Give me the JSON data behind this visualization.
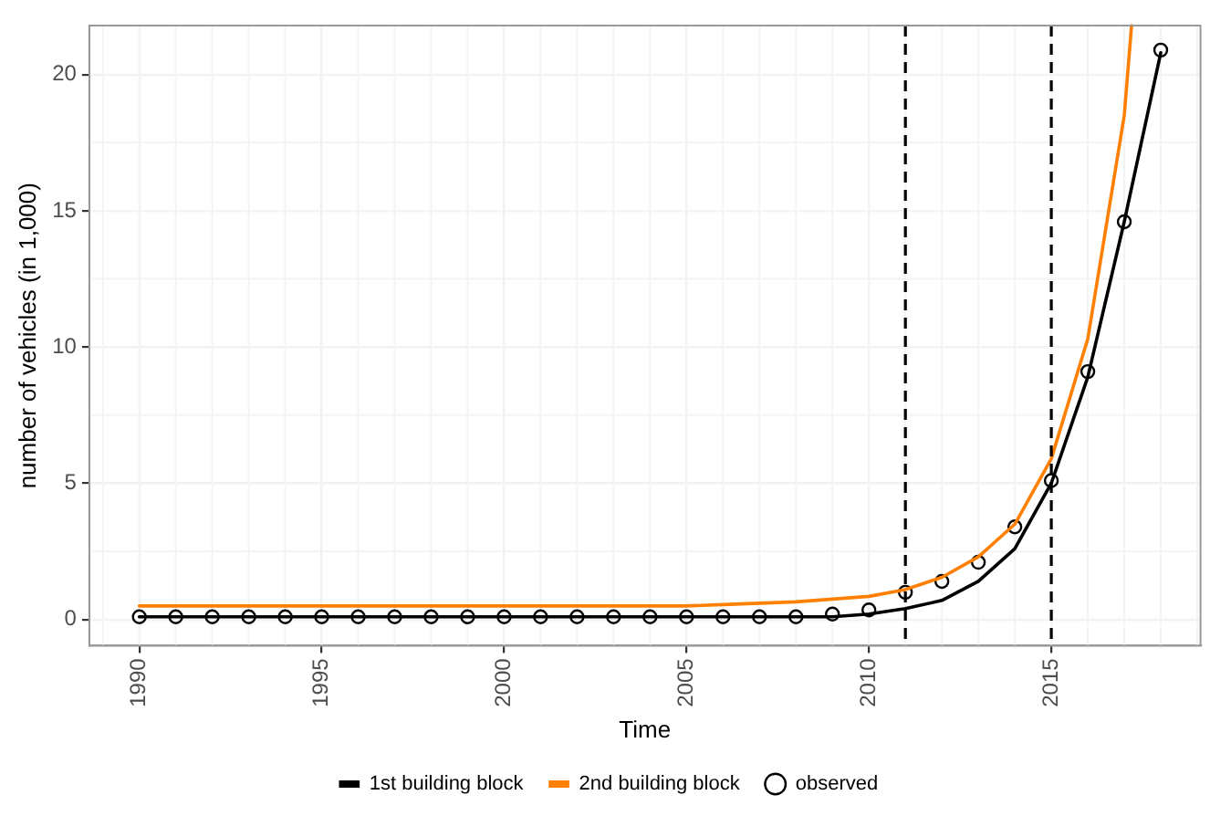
{
  "chart_data": {
    "type": "line",
    "xlabel": "Time",
    "ylabel": "number of vehicles (in 1,000)",
    "xlim": [
      1988.63,
      2019.09
    ],
    "xticks": [
      1990,
      1995,
      2000,
      2005,
      2010,
      2015
    ],
    "ylim": [
      -0.96,
      21.8
    ],
    "yticks": [
      0,
      5,
      10,
      15,
      20
    ],
    "grid": true,
    "legend": "bottom",
    "series": [
      {
        "name": "1st building block",
        "type": "line",
        "color": "#000000",
        "marker": "none",
        "x": [
          1990,
          1991,
          1992,
          1993,
          1994,
          1995,
          1996,
          1997,
          1998,
          1999,
          2000,
          2001,
          2002,
          2003,
          2004,
          2005,
          2006,
          2007,
          2008,
          2009,
          2010,
          2011,
          2012,
          2013,
          2014,
          2015,
          2016,
          2017,
          2018
        ],
        "values": [
          0.1,
          0.1,
          0.1,
          0.1,
          0.1,
          0.1,
          0.1,
          0.1,
          0.1,
          0.1,
          0.1,
          0.1,
          0.1,
          0.1,
          0.1,
          0.1,
          0.1,
          0.1,
          0.1,
          0.1,
          0.2,
          0.4,
          0.7,
          1.4,
          2.6,
          5.0,
          8.9,
          14.6,
          20.8
        ]
      },
      {
        "name": "2nd building block",
        "type": "line",
        "color": "#ff7f00",
        "marker": "none",
        "x": [
          1990,
          1991,
          1992,
          1993,
          1994,
          1995,
          1996,
          1997,
          1998,
          1999,
          2000,
          2001,
          2002,
          2003,
          2004,
          2005,
          2006,
          2007,
          2008,
          2009,
          2010,
          2011,
          2012,
          2013,
          2014,
          2015,
          2016,
          2017,
          2017.2
        ],
        "values": [
          0.5,
          0.5,
          0.5,
          0.5,
          0.5,
          0.5,
          0.5,
          0.5,
          0.5,
          0.5,
          0.5,
          0.5,
          0.5,
          0.5,
          0.5,
          0.5,
          0.55,
          0.6,
          0.65,
          0.75,
          0.85,
          1.1,
          1.55,
          2.3,
          3.5,
          5.9,
          10.3,
          18.5,
          21.8
        ]
      },
      {
        "name": "observed",
        "type": "scatter",
        "color": "#000000",
        "marker": "circle",
        "x": [
          1990,
          1991,
          1992,
          1993,
          1994,
          1995,
          1996,
          1997,
          1998,
          1999,
          2000,
          2001,
          2002,
          2003,
          2004,
          2005,
          2006,
          2007,
          2008,
          2009,
          2010,
          2011,
          2012,
          2013,
          2014,
          2015,
          2016,
          2017,
          2018
        ],
        "values": [
          0.1,
          0.1,
          0.1,
          0.1,
          0.1,
          0.1,
          0.1,
          0.1,
          0.1,
          0.1,
          0.1,
          0.1,
          0.1,
          0.1,
          0.1,
          0.1,
          0.1,
          0.1,
          0.1,
          0.2,
          0.35,
          1.0,
          1.4,
          2.1,
          3.4,
          5.1,
          9.1,
          14.6,
          20.9
        ]
      }
    ],
    "ref_lines": [
      {
        "axis": "x",
        "value": 2011,
        "color": "#000000",
        "line_style": "dashed"
      },
      {
        "axis": "x",
        "value": 2015,
        "color": "#000000",
        "line_style": "dashed"
      }
    ]
  }
}
